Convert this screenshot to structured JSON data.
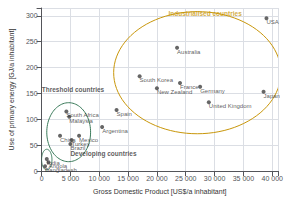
{
  "chart_data": {
    "type": "scatter",
    "xlabel": "Gross Domestic Product [US$/a inhabitant]",
    "ylabel": "Use of primary energy [GJ/a inhabitant]",
    "xlim": [
      0,
      41000
    ],
    "ylim": [
      0,
      315
    ],
    "xticks": [
      0,
      {
        "value": 5000,
        "label": "5 000"
      },
      {
        "value": 10000,
        "label": "10 000"
      },
      {
        "value": 15000,
        "label": "15 000"
      },
      {
        "value": 20000,
        "label": "20 000"
      },
      {
        "value": 25000,
        "label": "25 000"
      },
      {
        "value": 30000,
        "label": "30 000"
      },
      {
        "value": 35000,
        "label": "35 000"
      },
      {
        "value": 40000,
        "label": "40 000"
      }
    ],
    "yticks": [
      0,
      50,
      100,
      150,
      200,
      250,
      300
    ],
    "grid": true,
    "color": "#404040",
    "point_labels": [
      "USA",
      "Japan",
      "Australia",
      "Germany",
      "France",
      "United Kingdom",
      "New Zealand",
      "South Korea",
      "Spain",
      "Argentina",
      "South Africa",
      "Malaysia",
      "Mexico",
      "China",
      "Turkey",
      "Brazil",
      "India",
      "Angola",
      "Bangladesh"
    ],
    "x": [
      39000,
      38500,
      23500,
      27500,
      24000,
      29000,
      20000,
      17000,
      13000,
      10500,
      4300,
      4800,
      6500,
      3200,
      5200,
      5000,
      900,
      1200,
      600
    ],
    "values": [
      295,
      153,
      238,
      163,
      170,
      133,
      160,
      183,
      118,
      85,
      115,
      105,
      68,
      68,
      60,
      52,
      23,
      17,
      9
    ],
    "ellipses": [
      {
        "cx": 27000,
        "cy": 190,
        "rx": 14500,
        "ry": 118,
        "color": "#c8960a"
      },
      {
        "cx": 4700,
        "cy": 75,
        "rx": 3800,
        "ry": 57,
        "color": "#3a7a5a"
      },
      {
        "cx": 900,
        "cy": 22,
        "rx": 900,
        "ry": 20,
        "color": "#3a7a5a"
      }
    ],
    "annotations": [
      {
        "text": "Industrialised countries",
        "x": 22000,
        "y": 297,
        "color": "#c8960a"
      },
      {
        "text": "Threshold countries",
        "x": 28,
        "y": 150
      },
      {
        "text": "Developing countries",
        "x": 5000,
        "y": 26
      }
    ]
  }
}
